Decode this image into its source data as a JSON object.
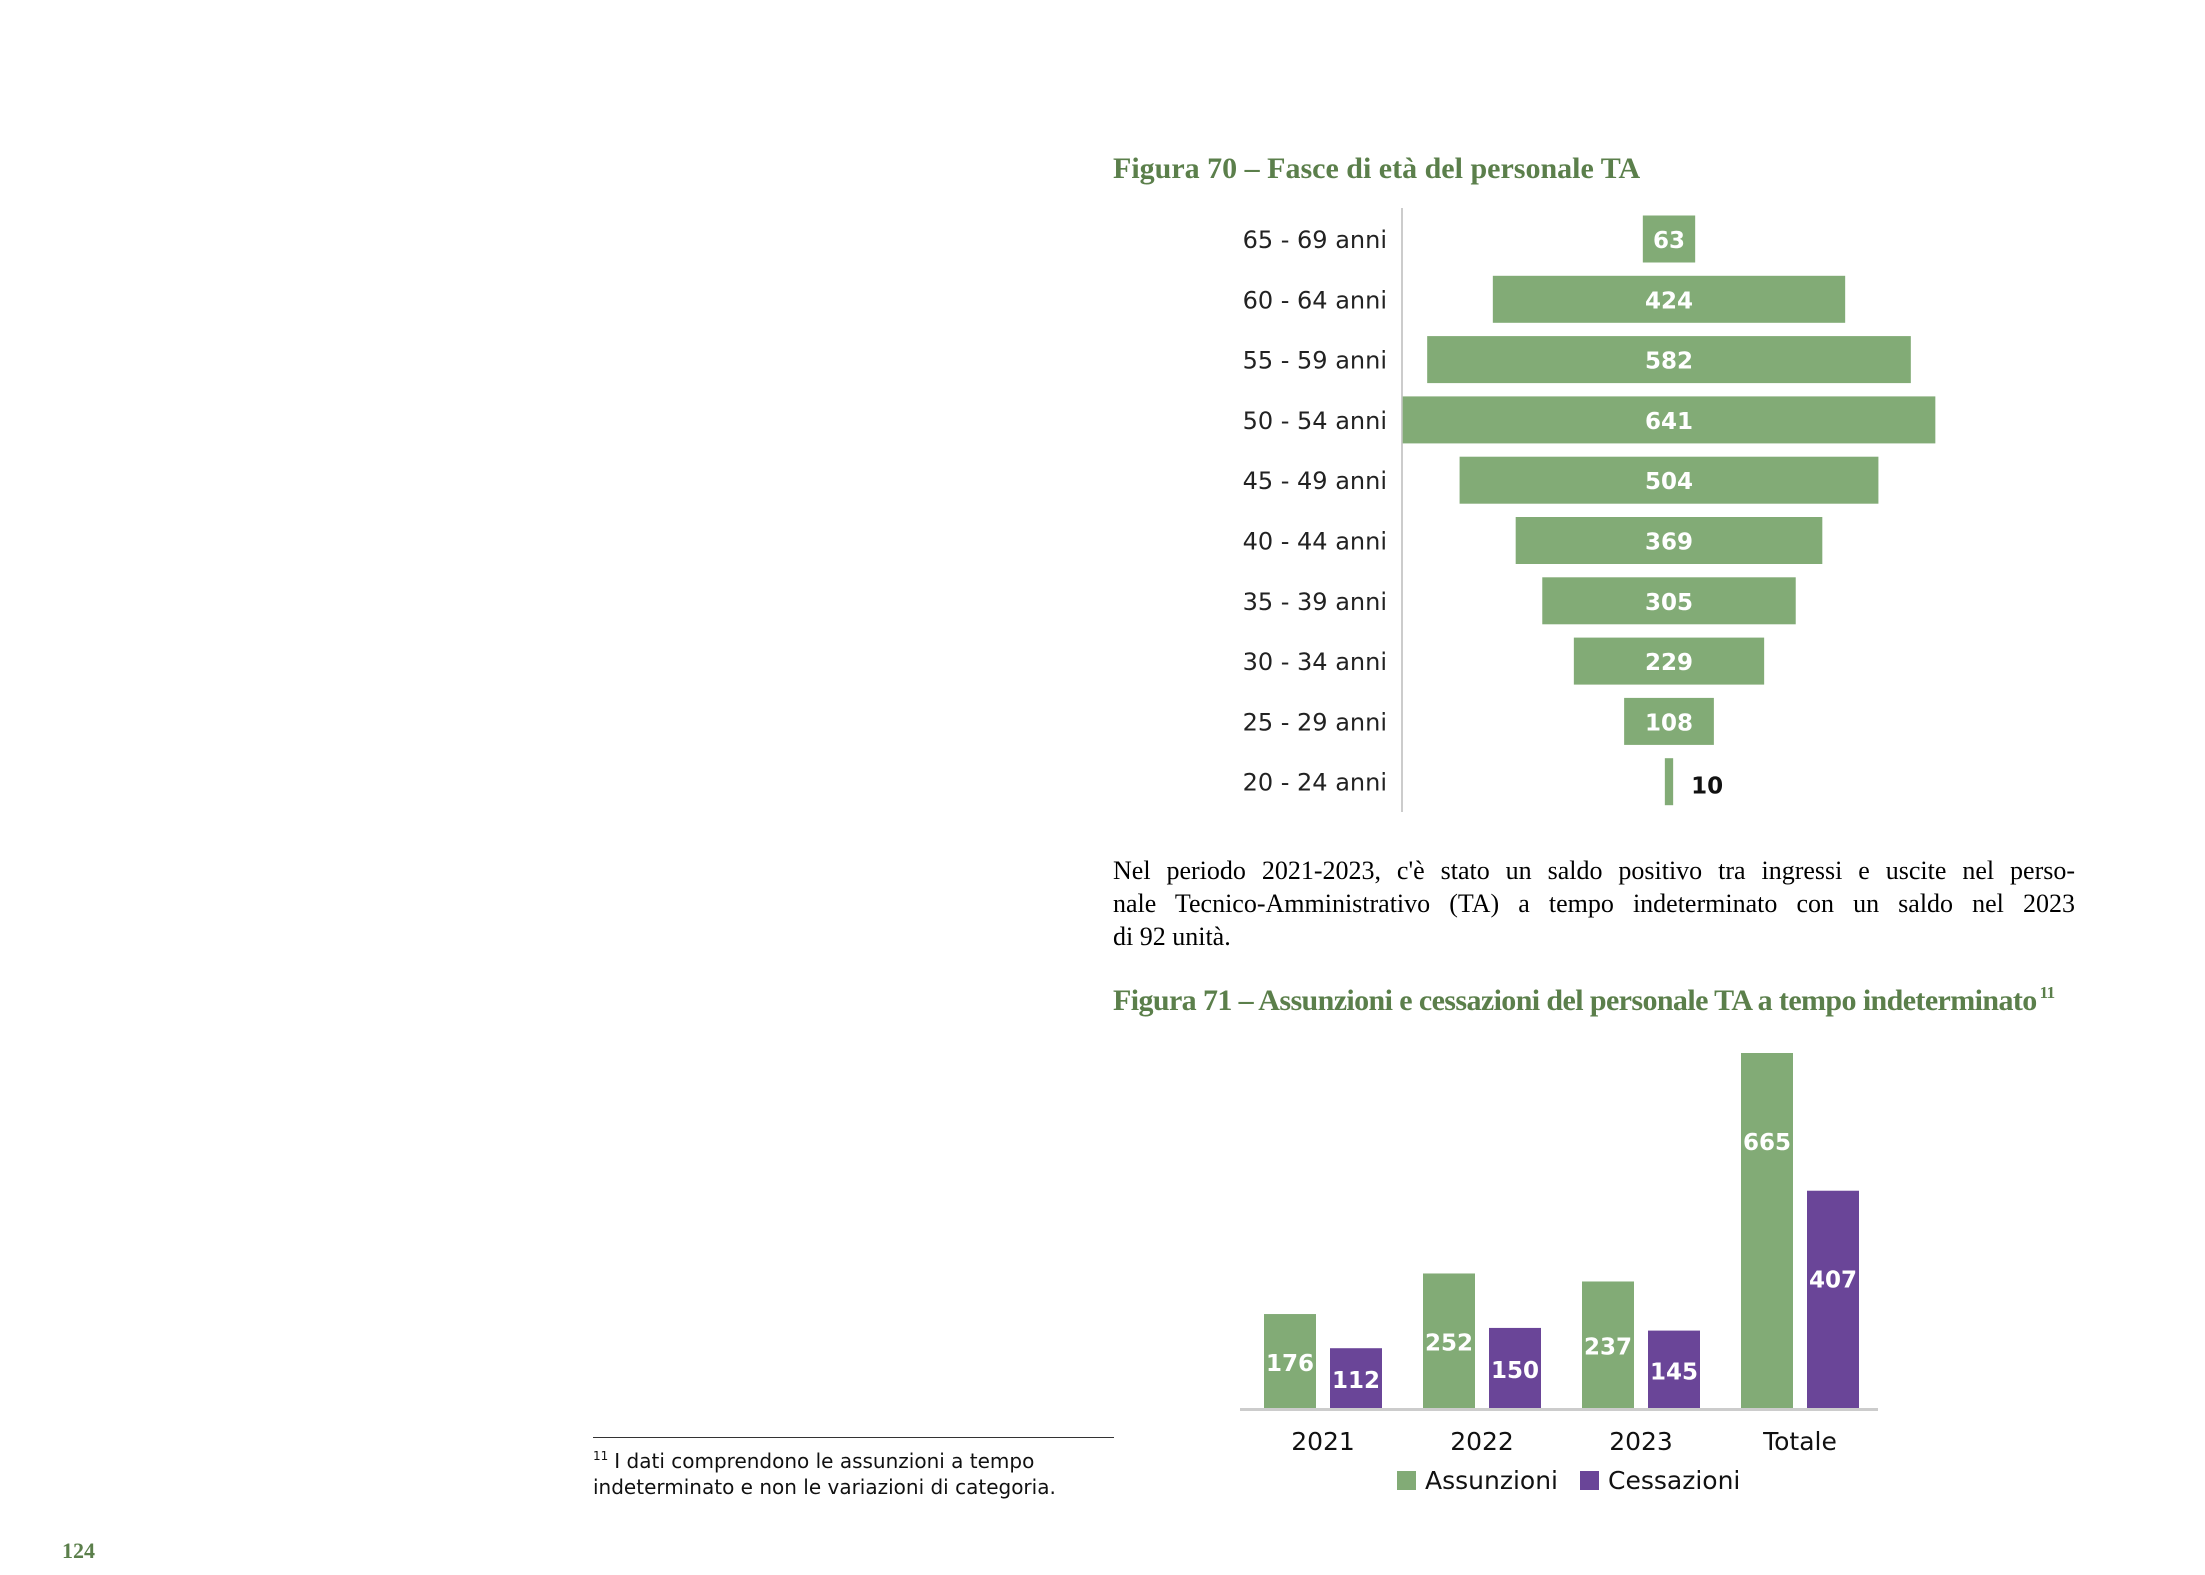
{
  "figure70": {
    "title": "Figura 70 – Fasce di età del personale TA"
  },
  "paragraph": {
    "lines": [
      "Nel periodo 2021-2023, c'è stato un saldo positivo tra ingressi e uscite nel perso-",
      "nale Tecnico-Amministrativo (TA) a tempo indeterminato con un saldo nel 2023",
      "di 92 unità."
    ]
  },
  "figure71": {
    "title": "Figura 71 – Assunzioni e cessazioni del personale TA a tempo indeterminato",
    "footnote_ref": "11"
  },
  "footnote": {
    "mark": "11",
    "text": "I dati comprendono le assunzioni a tempo indeterminato e non le variazioni di categoria."
  },
  "page_number": "124",
  "colors": {
    "title_green": "#5b7f4b",
    "bar_green": "#82ab76",
    "bar_purple": "#6a4598",
    "axis": "#cccccc"
  },
  "chart_data": [
    {
      "type": "bar",
      "orientation": "horizontal-centered",
      "categories": [
        "65 - 69 anni",
        "60 - 64 anni",
        "55 - 59 anni",
        "50 - 54 anni",
        "45 - 49 anni",
        "40 - 44 anni",
        "35 - 39 anni",
        "30 - 34 anni",
        "25 - 29 anni",
        "20 - 24 anni"
      ],
      "values": [
        63,
        424,
        582,
        641,
        504,
        369,
        305,
        229,
        108,
        10
      ],
      "data_labels": [
        "63",
        "424",
        "582",
        "641",
        "504",
        "369",
        "305",
        "229",
        "108",
        "10"
      ],
      "title": "",
      "xlabel": "",
      "ylabel": "",
      "grid": false
    },
    {
      "type": "bar",
      "categories": [
        "2021",
        "2022",
        "2023",
        "Totale"
      ],
      "series": [
        {
          "name": "Assunzioni",
          "values": [
            176,
            252,
            237,
            665
          ],
          "color": "#82ab76"
        },
        {
          "name": "Cessazioni",
          "values": [
            112,
            150,
            145,
            407
          ],
          "color": "#6a4598"
        }
      ],
      "title": "",
      "xlabel": "",
      "ylabel": "",
      "ylim": [
        0,
        665
      ],
      "grid": false,
      "legend": "bottom"
    }
  ]
}
